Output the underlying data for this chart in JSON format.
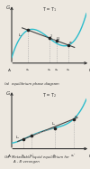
{
  "bg_color": "#ede8e0",
  "curve_color": "#2bbccc",
  "line_color": "#444444",
  "dashed_color": "#999999",
  "dot_color": "#222222",
  "panel_a": {
    "title": "T = T₁",
    "ylabel": "G",
    "xlabel_left": "A",
    "xlabel_right": "B",
    "label_L1": "L₁",
    "label_L2": "L₂",
    "label_a": "a",
    "x_ticks": [
      "x₁",
      "x₂",
      "x₃",
      "x₄"
    ],
    "x_tick_pos": [
      0.22,
      0.5,
      0.6,
      0.76
    ]
  },
  "panel_b": {
    "title": "T = T₂",
    "ylabel": "G",
    "xlabel_left": "A",
    "xlabel_right": "B",
    "label_L1": "L₁",
    "label_L2": "L₂",
    "label_a": "a",
    "x_ticks": [
      "x₀",
      "x₁’",
      "x₂",
      "x₀’"
    ],
    "x_tick_pos": [
      0.16,
      0.27,
      0.58,
      0.83
    ]
  },
  "caption_a": "(a)  equilibrium phase diagram",
  "caption_b": "(b)  Metastable liquid equilibrium for\n        A - B verongen"
}
